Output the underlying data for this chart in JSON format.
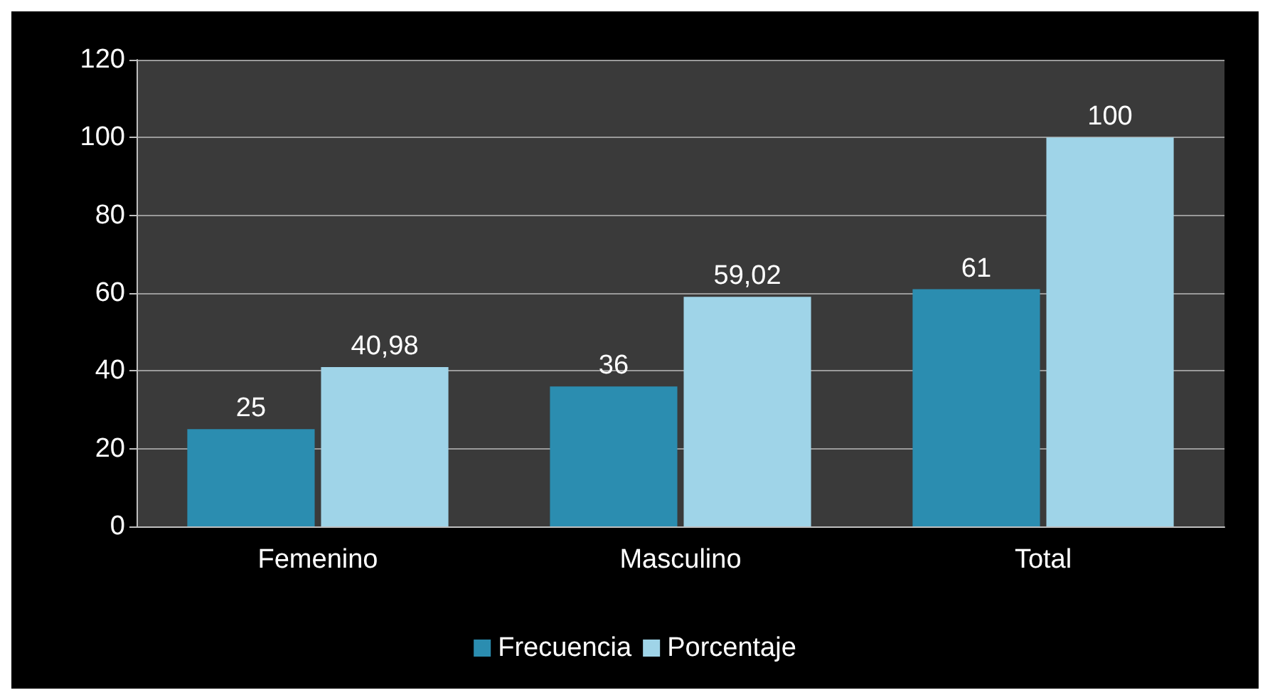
{
  "chart_data": {
    "type": "bar",
    "categories": [
      "Femenino",
      "Masculino",
      "Total"
    ],
    "series": [
      {
        "name": "Frecuencia",
        "color": "#2b8db0",
        "values": [
          25,
          36,
          61
        ],
        "value_labels": [
          "25",
          "36",
          "61"
        ]
      },
      {
        "name": "Porcentaje",
        "color": "#9fd4e8",
        "values": [
          40.98,
          59.02,
          100
        ],
        "value_labels": [
          "40,98",
          "59,02",
          "100"
        ]
      }
    ],
    "ylim": [
      0,
      120
    ],
    "yticks": [
      0,
      20,
      40,
      60,
      80,
      100,
      120
    ],
    "grid": "y",
    "legend": "bottom"
  }
}
